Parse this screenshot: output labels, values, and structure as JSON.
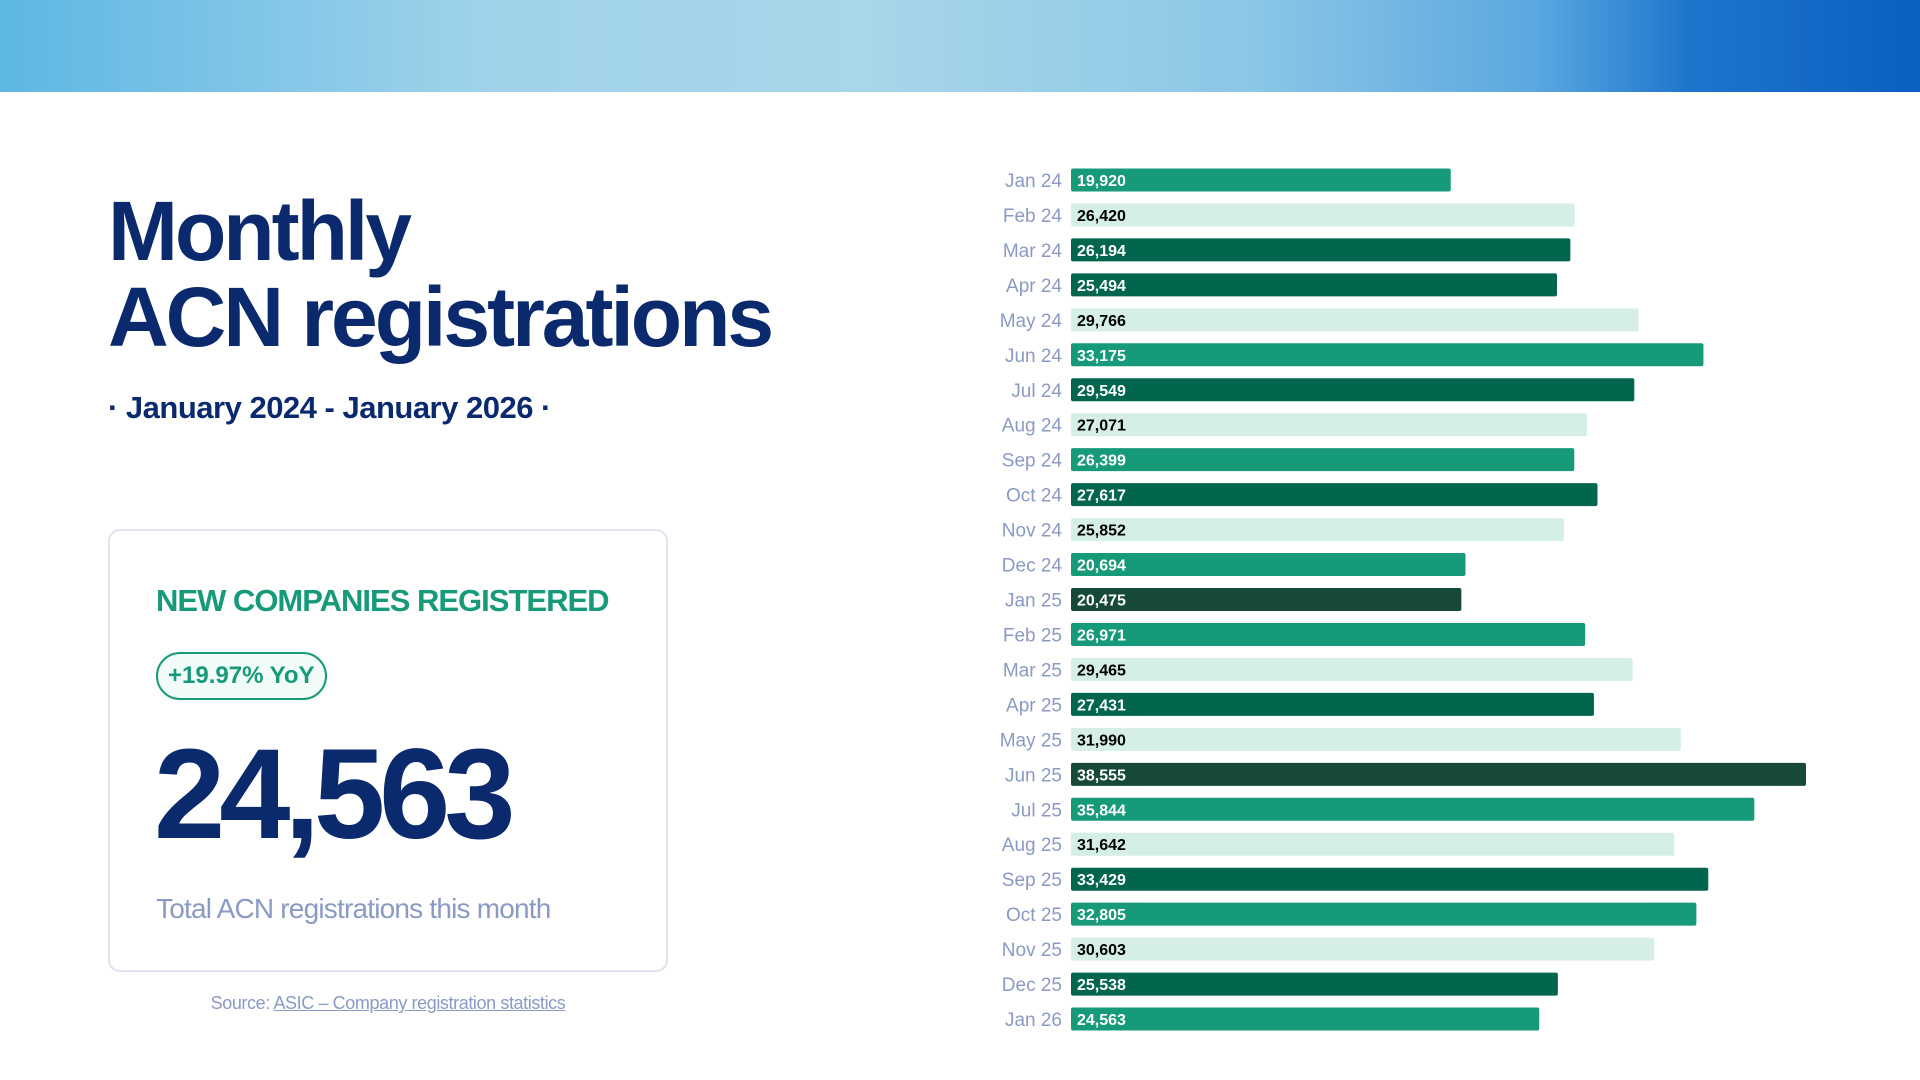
{
  "title_line1": "Monthly",
  "title_line2": "ACN registrations",
  "subtitle": "· January 2024 - January 2026 ·",
  "card": {
    "heading": "NEW COMPANIES REGISTERED",
    "yoy_badge": "+19.97% YoY",
    "value": "24,563",
    "caption": "Total ACN registrations this month"
  },
  "source": {
    "prefix": "Source:",
    "link_text": "ASIC – Company registration statistics"
  },
  "colors": {
    "navy": "#0b2a6e",
    "medium": "#179a7a",
    "light": "#d5eee8",
    "dark": "#02664f",
    "darkest": "#164a36"
  },
  "chart_data": {
    "type": "bar",
    "orientation": "horizontal",
    "categories": [
      "Jan 24",
      "Feb 24",
      "Mar 24",
      "Apr 24",
      "May 24",
      "Jun 24",
      "Jul 24",
      "Aug 24",
      "Sep 24",
      "Oct 24",
      "Nov 24",
      "Dec 24",
      "Jan 25",
      "Feb 25",
      "Mar 25",
      "Apr 25",
      "May 25",
      "Jun 25",
      "Jul 25",
      "Aug 25",
      "Sep 25",
      "Oct 25",
      "Nov 25",
      "Dec 25",
      "Jan 26"
    ],
    "values": [
      19920,
      26420,
      26194,
      25494,
      29766,
      33175,
      29549,
      27071,
      26399,
      27617,
      25852,
      20694,
      20475,
      26971,
      29465,
      27431,
      31990,
      38555,
      35844,
      31642,
      33429,
      32805,
      30603,
      25538,
      24563
    ],
    "bar_colors": [
      "medium",
      "light",
      "dark",
      "dark",
      "light",
      "medium",
      "dark",
      "light",
      "medium",
      "dark",
      "light",
      "medium",
      "darkest",
      "medium",
      "light",
      "dark",
      "light",
      "darkest",
      "medium",
      "light",
      "dark",
      "medium",
      "light",
      "dark",
      "medium"
    ],
    "xlim": [
      0,
      38555
    ],
    "grid": false,
    "data_labels": true
  }
}
